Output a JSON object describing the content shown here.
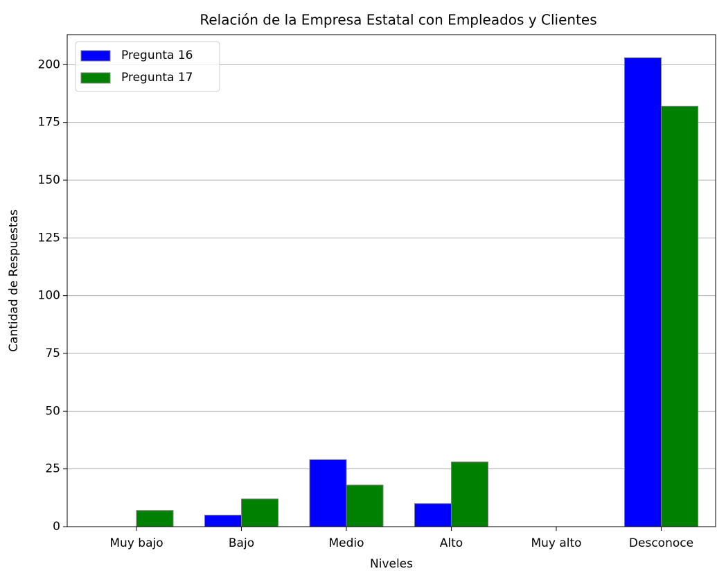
{
  "chart_data": {
    "type": "bar",
    "title": "Relación de la Empresa Estatal con Empleados y Clientes",
    "xlabel": "Niveles",
    "ylabel": "Cantidad de Respuestas",
    "categories": [
      "Muy bajo",
      "Bajo",
      "Medio",
      "Alto",
      "Muy alto",
      "Desconoce"
    ],
    "series": [
      {
        "name": "Pregunta 16",
        "color": "#0000ff",
        "values": [
          0,
          5,
          29,
          10,
          0,
          203
        ]
      },
      {
        "name": "Pregunta 17",
        "color": "#008000",
        "values": [
          7,
          12,
          18,
          28,
          0,
          182
        ]
      }
    ],
    "ylim": [
      0,
      213
    ],
    "yticks": [
      0,
      25,
      50,
      75,
      100,
      125,
      150,
      175,
      200
    ],
    "grid": true,
    "legend": "upper left"
  }
}
